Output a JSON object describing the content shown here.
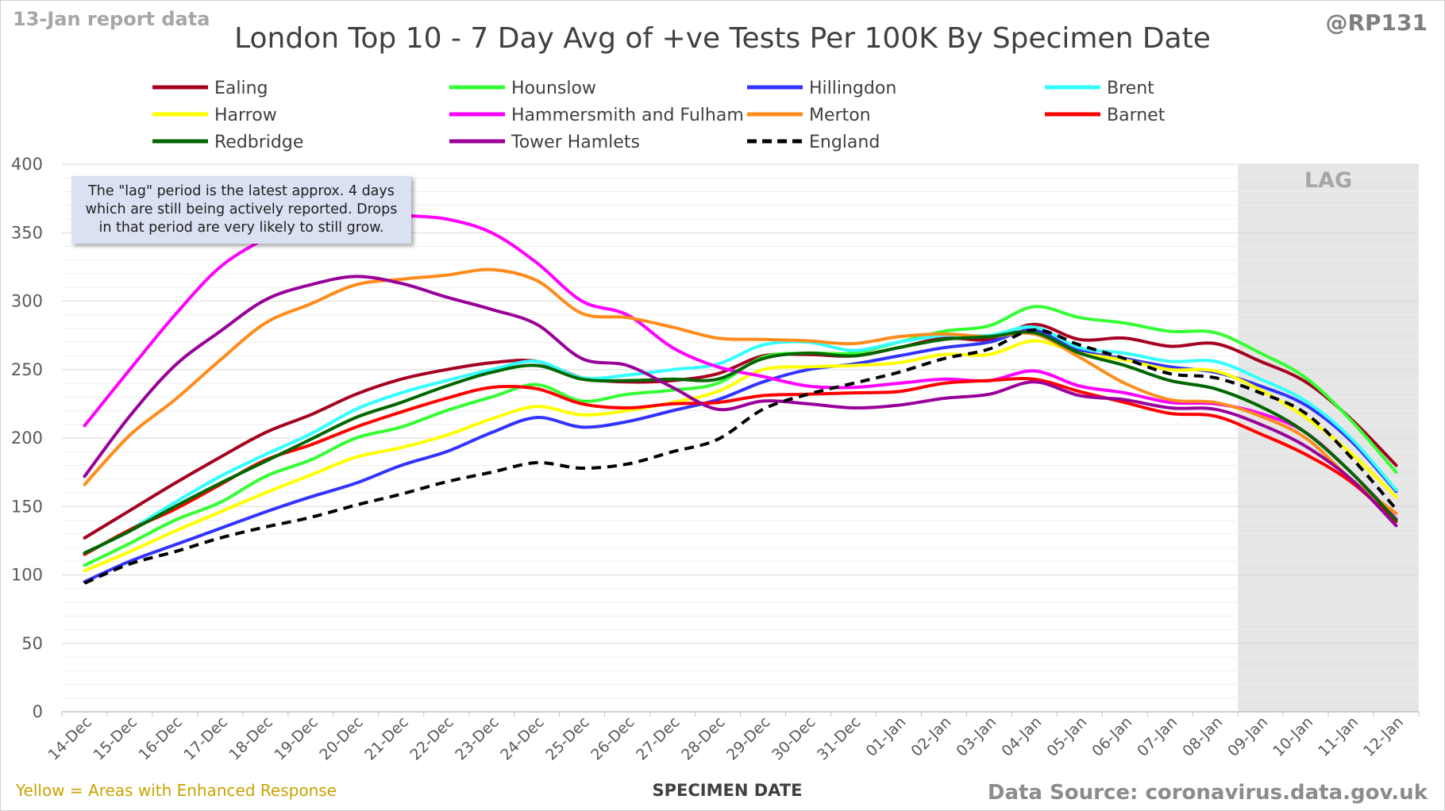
{
  "header": {
    "report_date": "13-Jan report data",
    "handle": "@RP131",
    "title": "London Top 10 - 7 Day Avg of +ve Tests Per 100K By Specimen Date"
  },
  "footer": {
    "enhanced_note": "Yellow = Areas with Enhanced Response",
    "source": "Data Source: coronavirus.data.gov.uk"
  },
  "annotation": {
    "lag_note": "The \"lag\" period is the latest approx. 4 days which are still being actively reported. Drops in that period are very likely to still grow.",
    "lag_label": "LAG"
  },
  "chart_data": {
    "type": "line",
    "xlabel": "SPECIMEN DATE",
    "ylabel": "",
    "ylim": [
      0,
      400
    ],
    "yticks": [
      0,
      50,
      100,
      150,
      200,
      250,
      300,
      350,
      400
    ],
    "grid": true,
    "legend_position": "top",
    "lag_shading_start": "09-Jan",
    "x": [
      "14-Dec",
      "15-Dec",
      "16-Dec",
      "17-Dec",
      "18-Dec",
      "19-Dec",
      "20-Dec",
      "21-Dec",
      "22-Dec",
      "23-Dec",
      "24-Dec",
      "25-Dec",
      "26-Dec",
      "27-Dec",
      "28-Dec",
      "29-Dec",
      "30-Dec",
      "31-Dec",
      "01-Jan",
      "02-Jan",
      "03-Jan",
      "04-Jan",
      "05-Jan",
      "06-Jan",
      "07-Jan",
      "08-Jan",
      "09-Jan",
      "10-Jan",
      "11-Jan",
      "12-Jan"
    ],
    "series": [
      {
        "name": "Ealing",
        "color": "#a50021",
        "dashed": false,
        "values": [
          127,
          147,
          167,
          186,
          204,
          217,
          232,
          243,
          250,
          255,
          256,
          244,
          241,
          242,
          247,
          260,
          261,
          260,
          266,
          273,
          272,
          283,
          272,
          273,
          267,
          269,
          256,
          241,
          214,
          180
        ]
      },
      {
        "name": "Hounslow",
        "color": "#33ff33",
        "dashed": false,
        "values": [
          107,
          123,
          140,
          153,
          172,
          184,
          200,
          208,
          220,
          230,
          239,
          227,
          232,
          235,
          240,
          259,
          262,
          262,
          270,
          278,
          282,
          296,
          288,
          284,
          278,
          277,
          262,
          244,
          213,
          175
        ]
      },
      {
        "name": "Hillingdon",
        "color": "#3333ff",
        "dashed": false,
        "values": [
          95,
          110,
          122,
          134,
          146,
          157,
          167,
          180,
          190,
          204,
          215,
          208,
          212,
          220,
          228,
          241,
          250,
          254,
          260,
          266,
          270,
          279,
          264,
          258,
          252,
          248,
          238,
          224,
          198,
          161
        ]
      },
      {
        "name": "Brent",
        "color": "#33ffff",
        "dashed": false,
        "values": [
          115,
          133,
          153,
          172,
          188,
          203,
          221,
          233,
          242,
          250,
          256,
          244,
          246,
          250,
          254,
          268,
          270,
          264,
          270,
          275,
          275,
          281,
          266,
          262,
          256,
          256,
          243,
          227,
          200,
          162
        ]
      },
      {
        "name": "Harrow",
        "color": "#ffff00",
        "dashed": false,
        "values": [
          103,
          117,
          132,
          146,
          160,
          173,
          186,
          193,
          202,
          214,
          223,
          217,
          220,
          226,
          234,
          250,
          252,
          253,
          255,
          261,
          261,
          271,
          262,
          257,
          250,
          249,
          235,
          215,
          189,
          157
        ]
      },
      {
        "name": "Hammersmith and Fulham",
        "color": "#ff00ff",
        "dashed": false,
        "values": [
          209,
          250,
          290,
          325,
          346,
          364,
          369,
          363,
          360,
          350,
          328,
          300,
          290,
          266,
          252,
          245,
          238,
          237,
          240,
          243,
          242,
          249,
          238,
          233,
          226,
          225,
          218,
          204,
          175,
          141
        ]
      },
      {
        "name": "Merton",
        "color": "#ff8c1a",
        "dashed": false,
        "values": [
          166,
          202,
          228,
          257,
          284,
          298,
          312,
          316,
          319,
          323,
          315,
          291,
          288,
          281,
          273,
          272,
          271,
          269,
          274,
          276,
          274,
          276,
          259,
          240,
          228,
          226,
          216,
          200,
          170,
          145
        ]
      },
      {
        "name": "Barnet",
        "color": "#ff0000",
        "dashed": false,
        "values": [
          115,
          133,
          148,
          166,
          184,
          195,
          208,
          219,
          229,
          237,
          236,
          225,
          222,
          225,
          226,
          231,
          232,
          233,
          234,
          240,
          242,
          243,
          234,
          226,
          218,
          216,
          203,
          188,
          168,
          139
        ]
      },
      {
        "name": "Redbridge",
        "color": "#006600",
        "dashed": false,
        "values": [
          116,
          132,
          150,
          167,
          183,
          199,
          215,
          226,
          238,
          248,
          253,
          243,
          242,
          243,
          243,
          258,
          262,
          260,
          266,
          272,
          274,
          277,
          262,
          253,
          242,
          236,
          223,
          204,
          175,
          140
        ]
      },
      {
        "name": "Tower Hamlets",
        "color": "#990099",
        "dashed": false,
        "values": [
          172,
          216,
          253,
          278,
          301,
          312,
          318,
          313,
          303,
          294,
          283,
          258,
          253,
          237,
          221,
          227,
          225,
          222,
          224,
          229,
          232,
          241,
          231,
          228,
          222,
          221,
          210,
          194,
          170,
          136
        ]
      },
      {
        "name": "England",
        "color": "#000000",
        "dashed": true,
        "values": [
          94,
          108,
          117,
          127,
          135,
          142,
          151,
          159,
          168,
          175,
          182,
          178,
          181,
          190,
          199,
          221,
          232,
          240,
          248,
          258,
          265,
          279,
          268,
          258,
          247,
          244,
          233,
          218,
          186,
          148
        ]
      }
    ]
  }
}
